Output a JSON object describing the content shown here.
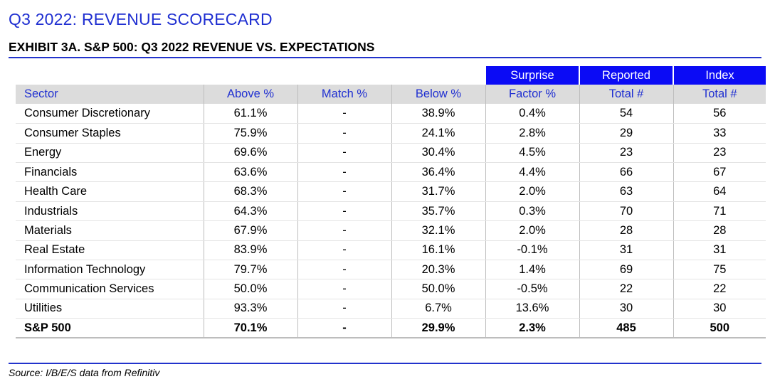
{
  "header": {
    "title": "Q3 2022: REVENUE SCORECARD",
    "exhibit": "EXHIBIT 3A.  S&P 500: Q3 2022 REVENUE VS. EXPECTATIONS"
  },
  "table": {
    "group_headers": [
      "Surprise",
      "Reported",
      "Index"
    ],
    "columns": [
      "Sector",
      "Above %",
      "Match %",
      "Below %",
      "Factor %",
      "Total #",
      "Total #"
    ],
    "rows": [
      [
        "Consumer Discretionary",
        "61.1%",
        "-",
        "38.9%",
        "0.4%",
        "54",
        "56"
      ],
      [
        "Consumer Staples",
        "75.9%",
        "-",
        "24.1%",
        "2.8%",
        "29",
        "33"
      ],
      [
        "Energy",
        "69.6%",
        "-",
        "30.4%",
        "4.5%",
        "23",
        "23"
      ],
      [
        "Financials",
        "63.6%",
        "-",
        "36.4%",
        "4.4%",
        "66",
        "67"
      ],
      [
        "Health Care",
        "68.3%",
        "-",
        "31.7%",
        "2.0%",
        "63",
        "64"
      ],
      [
        "Industrials",
        "64.3%",
        "-",
        "35.7%",
        "0.3%",
        "70",
        "71"
      ],
      [
        "Materials",
        "67.9%",
        "-",
        "32.1%",
        "2.0%",
        "28",
        "28"
      ],
      [
        "Real Estate",
        "83.9%",
        "-",
        "16.1%",
        "-0.1%",
        "31",
        "31"
      ],
      [
        "Information Technology",
        "79.7%",
        "-",
        "20.3%",
        "1.4%",
        "69",
        "75"
      ],
      [
        "Communication Services",
        "50.0%",
        "-",
        "50.0%",
        "-0.5%",
        "22",
        "22"
      ],
      [
        "Utilities",
        "93.3%",
        "-",
        "6.7%",
        "13.6%",
        "30",
        "30"
      ]
    ],
    "total": [
      "S&P 500",
      "70.1%",
      "-",
      "29.9%",
      "2.3%",
      "485",
      "500"
    ]
  },
  "footer": {
    "source": "Source: I/B/E/S data from Refinitiv"
  },
  "colors": {
    "title_blue": "#1f2fd1",
    "header_blue_fill": "#0b0bf5",
    "column_header_gray": "#dcdcdc"
  }
}
